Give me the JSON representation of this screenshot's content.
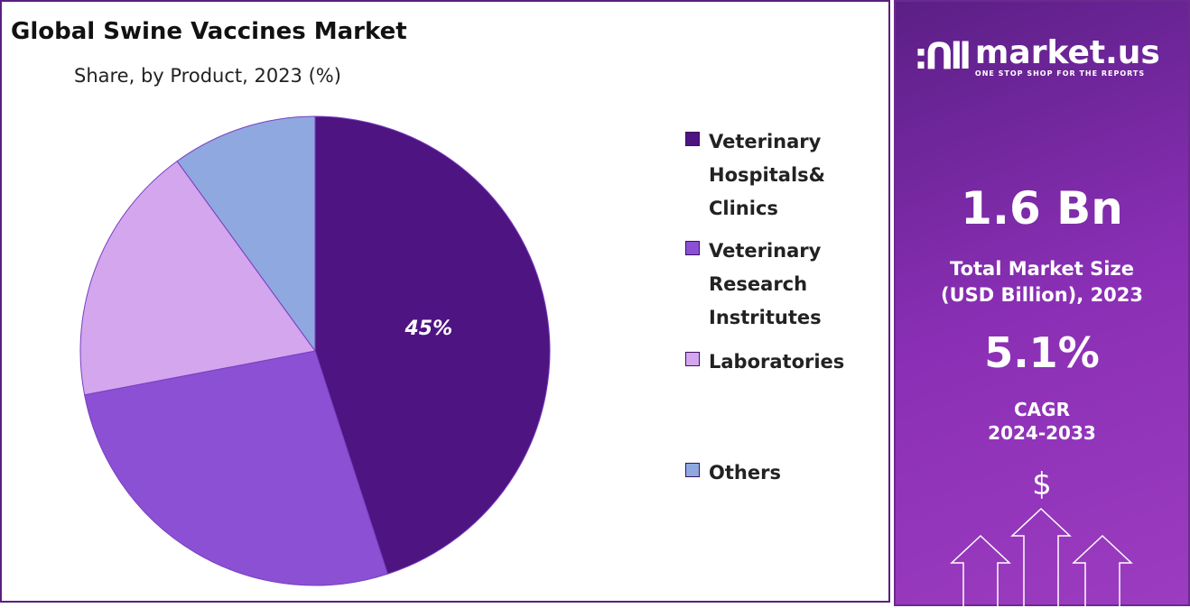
{
  "chart_data": {
    "type": "pie",
    "title": "Global Swine Vaccines Market",
    "subtitle": "Share, by Product, 2023 (%)",
    "categories": [
      "Veterinary Hospitals& Clinics",
      "Veterinary Research Instritutes",
      "Laboratories",
      "Others"
    ],
    "values": [
      45,
      27,
      18,
      10
    ],
    "colors": [
      "#4e1482",
      "#8b50d4",
      "#d3a6ee",
      "#8fa8e0"
    ],
    "data_labels": [
      "45%",
      "",
      "",
      ""
    ],
    "legend_placement": "right"
  },
  "legend": [
    {
      "lines": [
        "Veterinary",
        "Hospitals&",
        "Clinics"
      ]
    },
    {
      "lines": [
        "Veterinary",
        "Research",
        "Instritutes"
      ]
    },
    {
      "lines": [
        "Laboratories"
      ]
    },
    {
      "lines": [
        "Others"
      ]
    }
  ],
  "side_panel": {
    "logo_name": "market.us",
    "logo_tagline": "ONE STOP SHOP FOR THE REPORTS",
    "market_size": "1.6 Bn",
    "market_size_label_1": "Total Market Size",
    "market_size_label_2": "(USD Billion), 2023",
    "cagr": "5.1%",
    "cagr_label": "CAGR",
    "cagr_period": "2024-2033",
    "dollar_icon": "$",
    "icons": [
      "dollar-icon",
      "arrow-up-icon"
    ]
  }
}
